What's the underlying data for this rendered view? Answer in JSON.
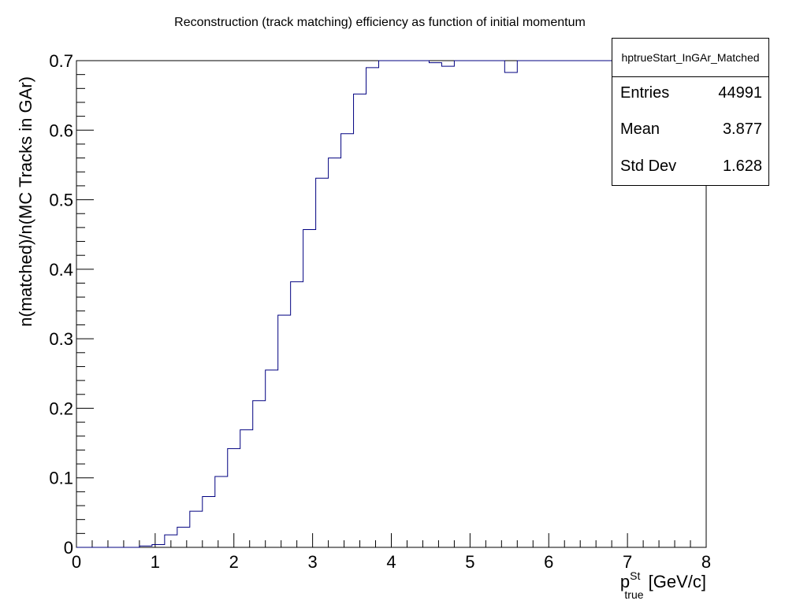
{
  "chart_data": {
    "type": "step",
    "title": "Reconstruction (track matching) efficiency as function of initial momentum",
    "ylabel": "n(matched)/n(MC Tracks in GAr)",
    "xlabel": {
      "main": "p",
      "sup": "St",
      "sub": "true",
      "unit": " [GeV/c]"
    },
    "xlim": [
      0,
      8
    ],
    "ylim": [
      0,
      0.7
    ],
    "x_ticks": [
      "0",
      "1",
      "2",
      "3",
      "4",
      "5",
      "6",
      "7",
      "8"
    ],
    "y_ticks": [
      "0",
      "0.1",
      "0.2",
      "0.3",
      "0.4",
      "0.5",
      "0.6",
      "0.7"
    ],
    "bin_width": 0.16,
    "x_start": 0,
    "values": [
      0,
      0,
      0,
      0,
      0,
      0.002,
      0.004,
      0.018,
      0.029,
      0.052,
      0.073,
      0.102,
      0.142,
      0.169,
      0.211,
      0.255,
      0.334,
      0.382,
      0.457,
      0.531,
      0.56,
      0.595,
      0.652,
      0.69,
      0.7,
      0.7,
      0.7,
      0.7,
      0.697,
      0.692,
      0.7,
      0.7,
      0.7,
      0.7,
      0.683,
      0.7,
      0.7,
      0.7,
      0.7,
      0.7,
      0.7,
      0.7,
      0.7,
      0.7,
      0.7,
      0.7,
      0.7,
      0.7,
      0.7,
      0.7
    ],
    "line_color": "#000080"
  },
  "stats": {
    "title": "hptrueStart_InGAr_Matched",
    "rows": [
      {
        "label": "Entries",
        "value": "44991"
      },
      {
        "label": "Mean",
        "value": "3.877"
      },
      {
        "label": "Std Dev",
        "value": "1.628"
      }
    ]
  }
}
